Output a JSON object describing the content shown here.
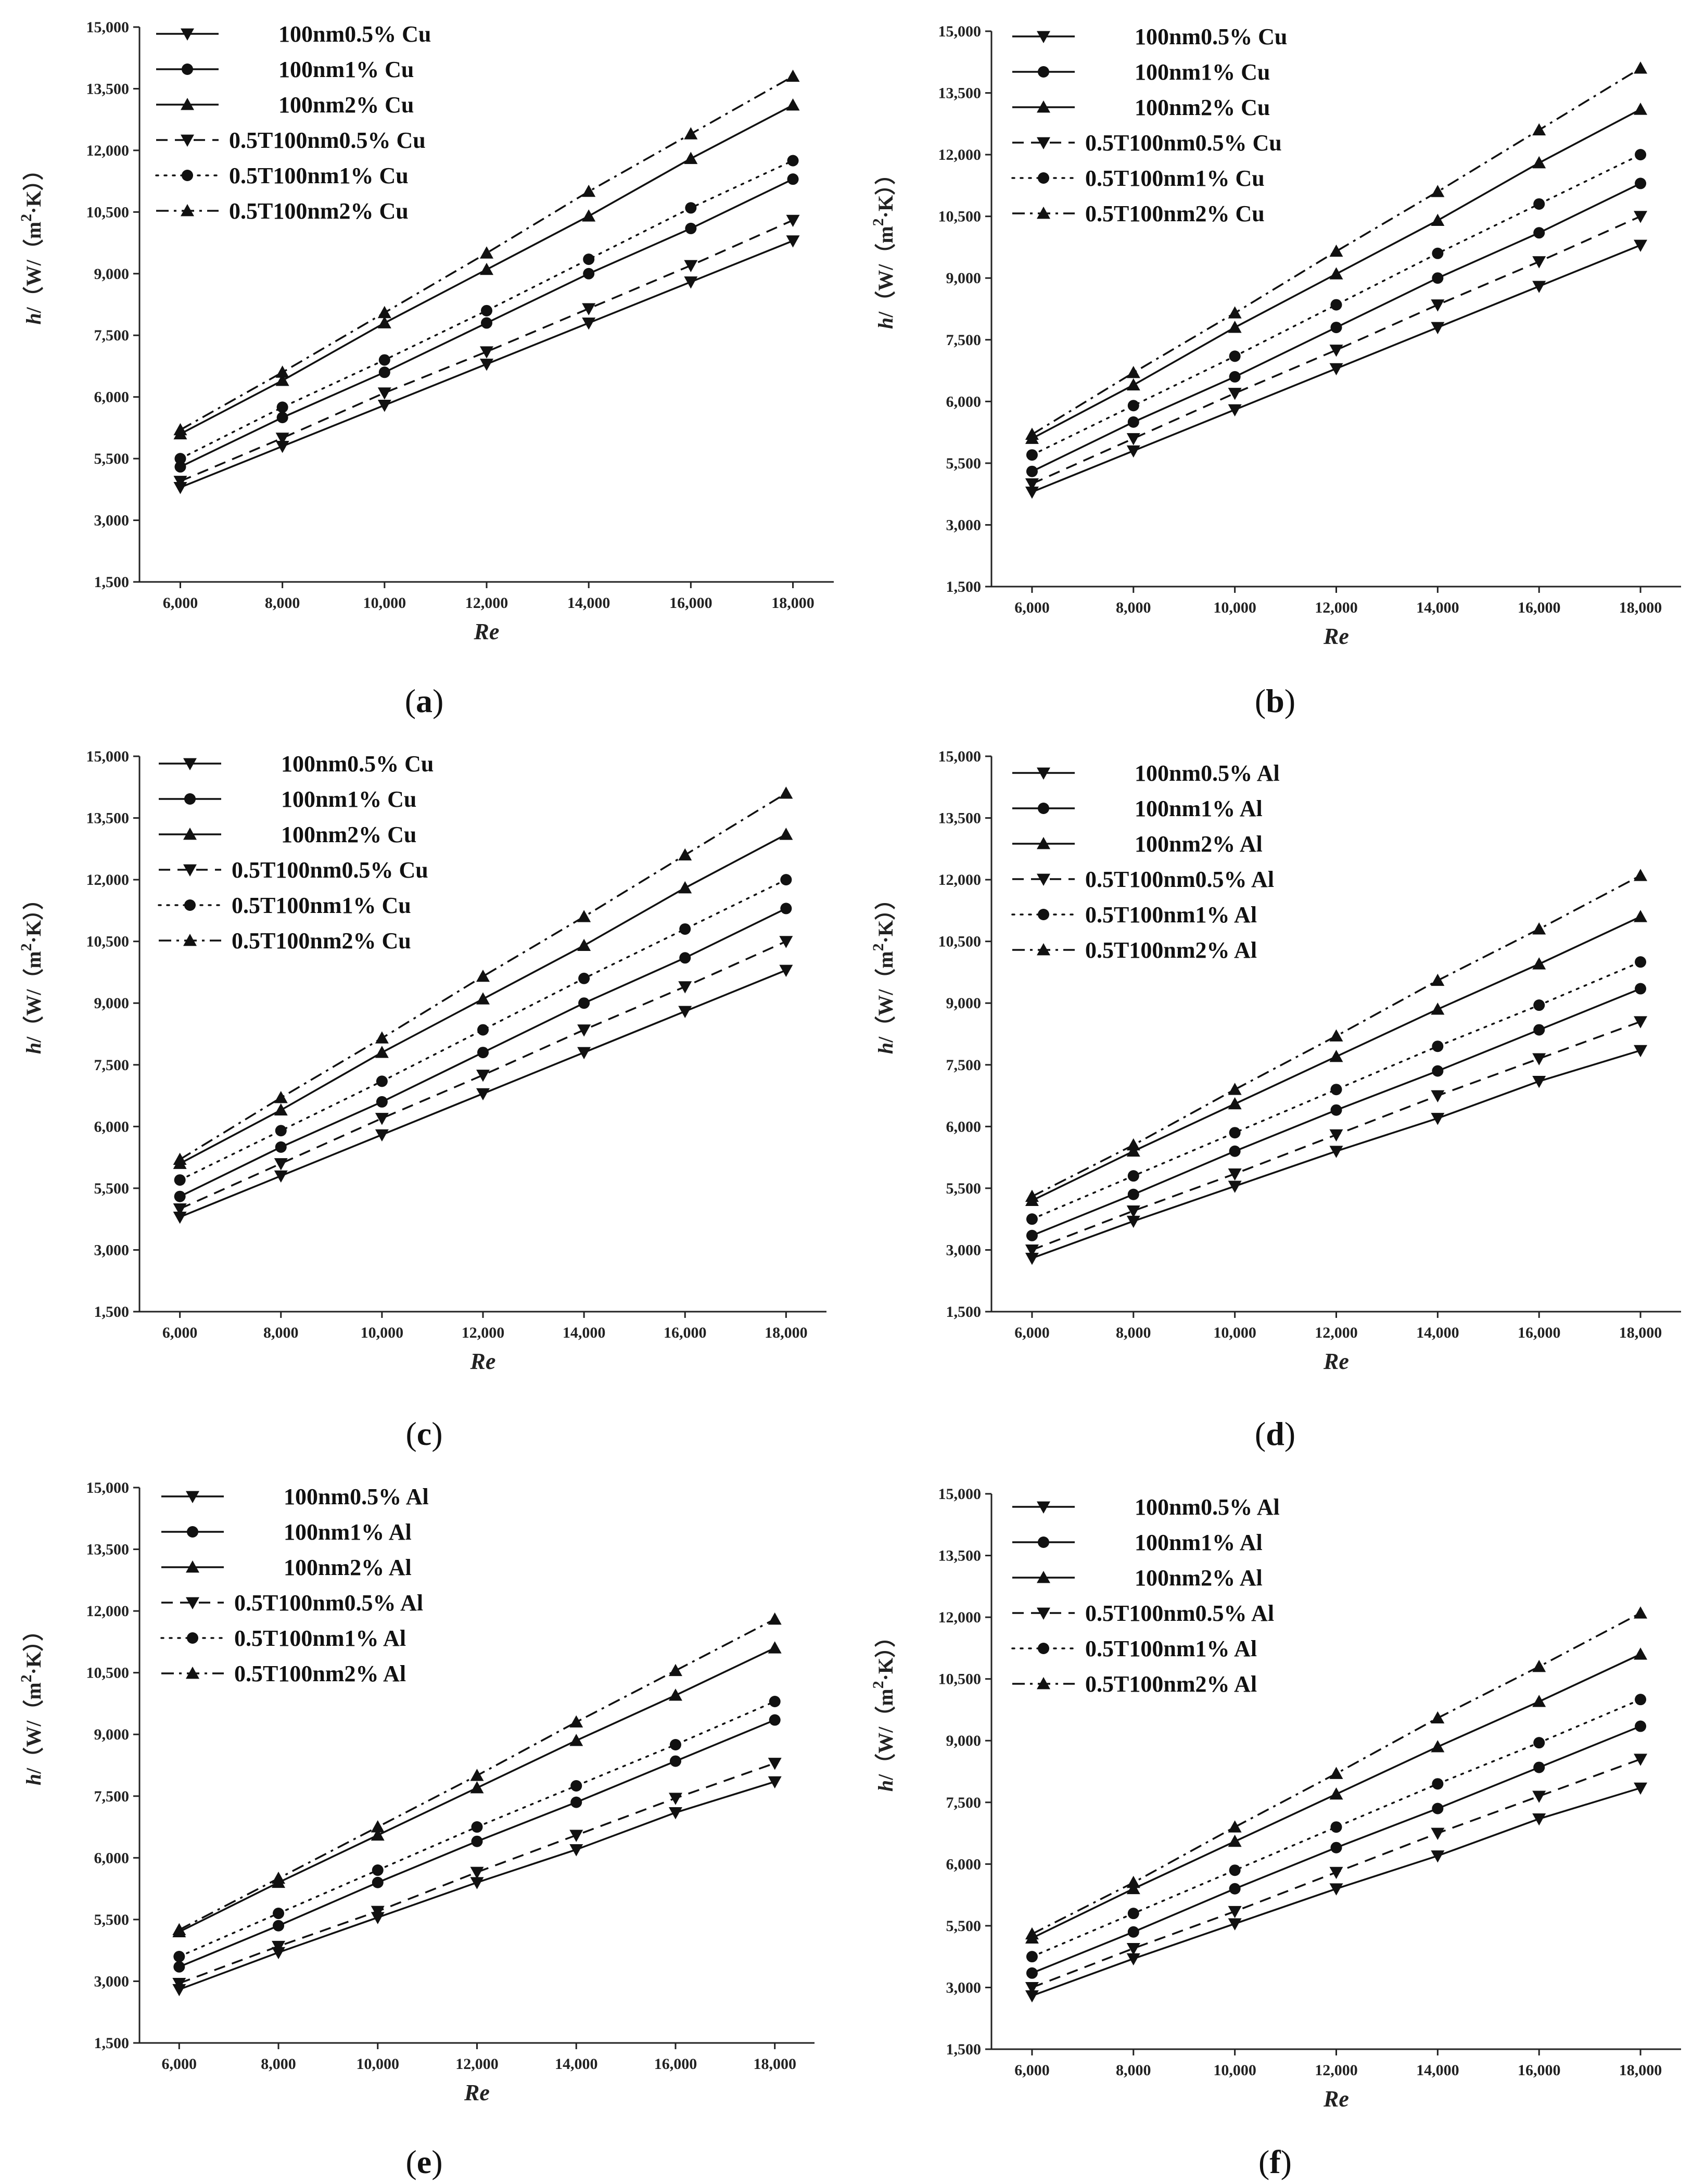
{
  "figure": {
    "panel_count": 6
  },
  "chart_data": [
    {
      "panel": "a",
      "type": "line",
      "caption": "(a)",
      "xlabel": "Re",
      "ylabel_prefix": "h/（W/（m",
      "ylabel_sup": "2",
      "ylabel_suffix": "·K））",
      "x": [
        6000,
        8000,
        10000,
        12000,
        14000,
        16000,
        18000
      ],
      "xlim": [
        5200,
        18800
      ],
      "xticks": [
        "6,000",
        "8,000",
        "10,000",
        "12,000",
        "14,000",
        "16,000",
        "18,000"
      ],
      "ylim": [
        1500,
        15000
      ],
      "yticks": [
        "1,500",
        "3,000",
        "5,500",
        "6,000",
        "7,500",
        "9,000",
        "10,500",
        "12,000",
        "13,500",
        "15,000"
      ],
      "series": [
        {
          "name": "100nm0.5% Cu",
          "marker": "triangle-down",
          "dash": "solid",
          "values": [
            3800,
            4800,
            5800,
            6800,
            7800,
            8800,
            9800
          ]
        },
        {
          "name": "100nm1% Cu",
          "marker": "circle",
          "dash": "solid",
          "values": [
            4300,
            5500,
            6600,
            7800,
            9000,
            10100,
            11300
          ]
        },
        {
          "name": "100nm2% Cu",
          "marker": "triangle-up",
          "dash": "solid",
          "values": [
            5100,
            6400,
            7800,
            9100,
            10400,
            11800,
            13100
          ]
        },
        {
          "name": "0.5T100nm0.5% Cu",
          "marker": "triangle-down",
          "dash": "dash",
          "values": [
            3950,
            5000,
            6100,
            7100,
            8150,
            9200,
            10300
          ]
        },
        {
          "name": "0.5T100nm1% Cu",
          "marker": "circle",
          "dash": "dot",
          "values": [
            4500,
            5750,
            6900,
            8100,
            9350,
            10600,
            11750
          ]
        },
        {
          "name": "0.5T100nm2% Cu",
          "marker": "triangle-up",
          "dash": "dashdot",
          "values": [
            5200,
            6600,
            8050,
            9500,
            11000,
            12400,
            13800
          ]
        }
      ]
    },
    {
      "panel": "b",
      "type": "line",
      "caption": "(b)",
      "xlabel": "Re",
      "ylabel_prefix": "h/（W/（m",
      "ylabel_sup": "2",
      "ylabel_suffix": "·K））",
      "x": [
        6000,
        8000,
        10000,
        12000,
        14000,
        16000,
        18000
      ],
      "xlim": [
        5200,
        18800
      ],
      "xticks": [
        "6,000",
        "8,000",
        "10,000",
        "12,000",
        "14,000",
        "16,000",
        "18,000"
      ],
      "ylim": [
        1500,
        15000
      ],
      "yticks": [
        "1,500",
        "3,000",
        "5,500",
        "6,000",
        "7,500",
        "9,000",
        "10,500",
        "12,000",
        "13,500",
        "15,000"
      ],
      "series": [
        {
          "name": "100nm0.5% Cu",
          "marker": "triangle-down",
          "dash": "solid",
          "values": [
            3800,
            4800,
            5800,
            6800,
            7800,
            8800,
            9800
          ]
        },
        {
          "name": "100nm1% Cu",
          "marker": "circle",
          "dash": "solid",
          "values": [
            4300,
            5500,
            6600,
            7800,
            9000,
            10100,
            11300
          ]
        },
        {
          "name": "100nm2% Cu",
          "marker": "triangle-up",
          "dash": "solid",
          "values": [
            5100,
            6400,
            7800,
            9100,
            10400,
            11800,
            13100
          ]
        },
        {
          "name": "0.5T100nm0.5% Cu",
          "marker": "triangle-down",
          "dash": "dash",
          "values": [
            4000,
            5100,
            6200,
            7250,
            8350,
            9400,
            10500
          ]
        },
        {
          "name": "0.5T100nm1% Cu",
          "marker": "circle",
          "dash": "dot",
          "values": [
            4700,
            5900,
            7100,
            8350,
            9600,
            10800,
            12000
          ]
        },
        {
          "name": "0.5T100nm2% Cu",
          "marker": "triangle-up",
          "dash": "dashdot",
          "values": [
            5200,
            6700,
            8150,
            9650,
            11100,
            12600,
            14100
          ]
        }
      ]
    },
    {
      "panel": "c",
      "type": "line",
      "caption": "(c)",
      "xlabel": "Re",
      "ylabel_prefix": "h/（W/（m",
      "ylabel_sup": "2",
      "ylabel_suffix": "·K））",
      "x": [
        6000,
        8000,
        10000,
        12000,
        14000,
        16000,
        18000
      ],
      "xlim": [
        5200,
        18800
      ],
      "xticks": [
        "6,000",
        "8,000",
        "10,000",
        "12,000",
        "14,000",
        "16,000",
        "18,000"
      ],
      "ylim": [
        1500,
        15000
      ],
      "yticks": [
        "1,500",
        "3,000",
        "5,500",
        "6,000",
        "7,500",
        "9,000",
        "10,500",
        "12,000",
        "13,500",
        "15,000"
      ],
      "series": [
        {
          "name": "100nm0.5% Cu",
          "marker": "triangle-down",
          "dash": "solid",
          "values": [
            3800,
            4800,
            5800,
            6800,
            7800,
            8800,
            9800
          ]
        },
        {
          "name": "100nm1% Cu",
          "marker": "circle",
          "dash": "solid",
          "values": [
            4300,
            5500,
            6600,
            7800,
            9000,
            10100,
            11300
          ]
        },
        {
          "name": "100nm2% Cu",
          "marker": "triangle-up",
          "dash": "solid",
          "values": [
            5100,
            6400,
            7800,
            9100,
            10400,
            11800,
            13100
          ]
        },
        {
          "name": "0.5T100nm0.5% Cu",
          "marker": "triangle-down",
          "dash": "dash",
          "values": [
            4000,
            5100,
            6200,
            7250,
            8350,
            9400,
            10500
          ]
        },
        {
          "name": "0.5T100nm1% Cu",
          "marker": "circle",
          "dash": "dot",
          "values": [
            4700,
            5900,
            7100,
            8350,
            9600,
            10800,
            12000
          ]
        },
        {
          "name": "0.5T100nm2% Cu",
          "marker": "triangle-up",
          "dash": "dashdot",
          "values": [
            5200,
            6700,
            8150,
            9650,
            11100,
            12600,
            14100
          ]
        }
      ]
    },
    {
      "panel": "d",
      "type": "line",
      "caption": "(d)",
      "xlabel": "Re",
      "ylabel_prefix": "h/（W/（m",
      "ylabel_sup": "2",
      "ylabel_suffix": "·K））",
      "x": [
        6000,
        8000,
        10000,
        12000,
        14000,
        16000,
        18000
      ],
      "xlim": [
        5200,
        18800
      ],
      "xticks": [
        "6,000",
        "8,000",
        "10,000",
        "12,000",
        "14,000",
        "16,000",
        "18,000"
      ],
      "ylim": [
        1500,
        15000
      ],
      "yticks": [
        "1,500",
        "3,000",
        "5,500",
        "6,000",
        "7,500",
        "9,000",
        "10,500",
        "12,000",
        "13,500",
        "15,000"
      ],
      "series": [
        {
          "name": "100nm0.5% Al",
          "marker": "triangle-down",
          "dash": "solid",
          "values": [
            2800,
            3700,
            4550,
            5400,
            6200,
            7100,
            7850
          ]
        },
        {
          "name": "100nm1% Al",
          "marker": "circle",
          "dash": "solid",
          "values": [
            3350,
            4350,
            5400,
            6400,
            7350,
            8350,
            9350
          ]
        },
        {
          "name": "100nm2% Al",
          "marker": "triangle-up",
          "dash": "solid",
          "values": [
            4200,
            5400,
            6550,
            7700,
            8850,
            9950,
            11100
          ]
        },
        {
          "name": "0.5T100nm0.5% Al",
          "marker": "triangle-down",
          "dash": "dash",
          "values": [
            3000,
            3950,
            4850,
            5800,
            6750,
            7650,
            8550
          ]
        },
        {
          "name": "0.5T100nm1% Al",
          "marker": "circle",
          "dash": "dot",
          "values": [
            3750,
            4800,
            5850,
            6900,
            7950,
            8950,
            10000
          ]
        },
        {
          "name": "0.5T100nm2% Al",
          "marker": "triangle-up",
          "dash": "dashdot",
          "values": [
            4300,
            5550,
            6900,
            8200,
            9550,
            10800,
            12100
          ]
        }
      ]
    },
    {
      "panel": "e",
      "type": "line",
      "caption": "(e)",
      "xlabel": "Re",
      "ylabel_prefix": "h/（W/（m",
      "ylabel_sup": "2",
      "ylabel_suffix": "·K））",
      "x": [
        6000,
        8000,
        10000,
        12000,
        14000,
        16000,
        18000
      ],
      "xlim": [
        5200,
        18800
      ],
      "xticks": [
        "6,000",
        "8,000",
        "10,000",
        "12,000",
        "14,000",
        "16,000",
        "18,000"
      ],
      "ylim": [
        1500,
        15000
      ],
      "yticks": [
        "1,500",
        "3,000",
        "5,500",
        "6,000",
        "7,500",
        "9,000",
        "10,500",
        "12,000",
        "13,500",
        "15,000"
      ],
      "series": [
        {
          "name": "100nm0.5% Al",
          "marker": "triangle-down",
          "dash": "solid",
          "values": [
            2800,
            3700,
            4550,
            5400,
            6200,
            7100,
            7850
          ]
        },
        {
          "name": "100nm1% Al",
          "marker": "circle",
          "dash": "solid",
          "values": [
            3350,
            4350,
            5400,
            6400,
            7350,
            8350,
            9350
          ]
        },
        {
          "name": "100nm2% Al",
          "marker": "triangle-up",
          "dash": "solid",
          "values": [
            4200,
            5400,
            6550,
            7700,
            8850,
            9950,
            11100
          ]
        },
        {
          "name": "0.5T100nm0.5% Al",
          "marker": "triangle-down",
          "dash": "dash",
          "values": [
            2950,
            3850,
            4700,
            5650,
            6550,
            7450,
            8300
          ]
        },
        {
          "name": "0.5T100nm1% Al",
          "marker": "circle",
          "dash": "dot",
          "values": [
            3600,
            4650,
            5700,
            6750,
            7750,
            8750,
            9800
          ]
        },
        {
          "name": "0.5T100nm2% Al",
          "marker": "triangle-up",
          "dash": "dashdot",
          "values": [
            4250,
            5500,
            6750,
            8000,
            9300,
            10550,
            11800
          ]
        }
      ]
    },
    {
      "panel": "f",
      "type": "line",
      "caption": "(f)",
      "xlabel": "Re",
      "ylabel_prefix": "h/（W/（m",
      "ylabel_sup": "2",
      "ylabel_suffix": "·K））",
      "x": [
        6000,
        8000,
        10000,
        12000,
        14000,
        16000,
        18000
      ],
      "xlim": [
        5200,
        18800
      ],
      "xticks": [
        "6,000",
        "8,000",
        "10,000",
        "12,000",
        "14,000",
        "16,000",
        "18,000"
      ],
      "ylim": [
        1500,
        15000
      ],
      "yticks": [
        "1,500",
        "3,000",
        "5,500",
        "6,000",
        "7,500",
        "9,000",
        "10,500",
        "12,000",
        "13,500",
        "15,000"
      ],
      "series": [
        {
          "name": "100nm0.5% Al",
          "marker": "triangle-down",
          "dash": "solid",
          "values": [
            2800,
            3700,
            4550,
            5400,
            6200,
            7100,
            7850
          ]
        },
        {
          "name": "100nm1% Al",
          "marker": "circle",
          "dash": "solid",
          "values": [
            3350,
            4350,
            5400,
            6400,
            7350,
            8350,
            9350
          ]
        },
        {
          "name": "100nm2% Al",
          "marker": "triangle-up",
          "dash": "solid",
          "values": [
            4200,
            5400,
            6550,
            7700,
            8850,
            9950,
            11100
          ]
        },
        {
          "name": "0.5T100nm0.5% Al",
          "marker": "triangle-down",
          "dash": "dash",
          "values": [
            3000,
            3950,
            4850,
            5800,
            6750,
            7650,
            8550
          ]
        },
        {
          "name": "0.5T100nm1% Al",
          "marker": "circle",
          "dash": "dot",
          "values": [
            3750,
            4800,
            5850,
            6900,
            7950,
            8950,
            10000
          ]
        },
        {
          "name": "0.5T100nm2% Al",
          "marker": "triangle-up",
          "dash": "dashdot",
          "values": [
            4300,
            5550,
            6900,
            8200,
            9550,
            10800,
            12100
          ]
        }
      ]
    }
  ]
}
